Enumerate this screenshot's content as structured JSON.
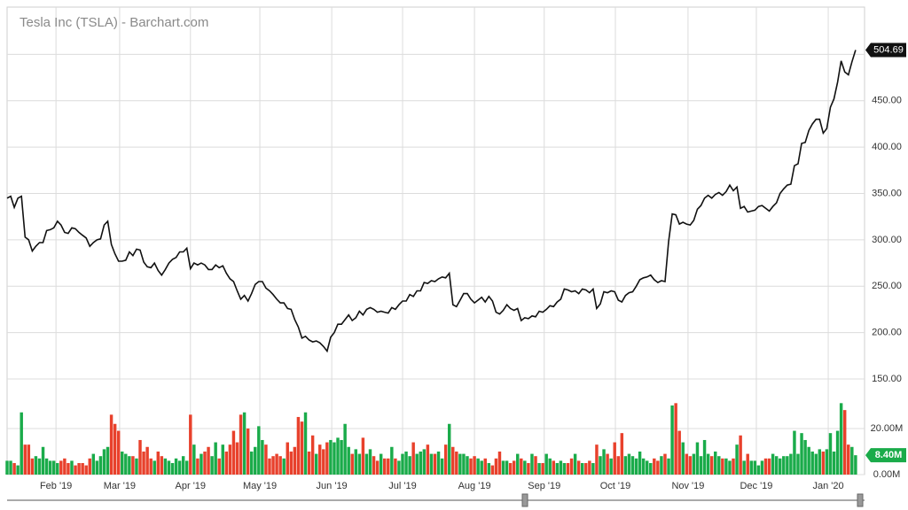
{
  "chart_data": [
    {
      "type": "line",
      "title": "Tesla Inc (TSLA) - Barchart.com",
      "color": "#111111",
      "values": [
        345,
        347,
        335,
        345,
        347,
        303,
        300,
        288,
        293,
        297,
        297,
        310,
        311,
        313,
        320,
        316,
        308,
        307,
        313,
        312,
        308,
        305,
        302,
        293,
        297,
        300,
        301,
        316,
        320,
        295,
        285,
        277,
        277,
        278,
        287,
        283,
        290,
        289,
        276,
        271,
        270,
        275,
        267,
        262,
        268,
        275,
        279,
        281,
        287,
        287,
        291,
        269,
        275,
        273,
        275,
        273,
        268,
        268,
        273,
        270,
        272,
        264,
        258,
        255,
        245,
        236,
        240,
        234,
        242,
        252,
        255,
        255,
        248,
        245,
        241,
        236,
        232,
        232,
        226,
        225,
        214,
        206,
        194,
        196,
        192,
        190,
        191,
        189,
        185,
        180,
        195,
        200,
        209,
        209,
        214,
        219,
        213,
        216,
        223,
        219,
        225,
        227,
        225,
        222,
        223,
        222,
        221,
        227,
        225,
        230,
        234,
        234,
        241,
        239,
        245,
        245,
        254,
        253,
        256,
        255,
        258,
        260,
        259,
        264,
        230,
        228,
        235,
        242,
        242,
        236,
        232,
        235,
        238,
        233,
        239,
        234,
        222,
        220,
        224,
        230,
        226,
        224,
        226,
        213,
        216,
        215,
        218,
        217,
        223,
        222,
        225,
        229,
        228,
        233,
        236,
        247,
        246,
        244,
        245,
        242,
        247,
        246,
        243,
        247,
        226,
        231,
        244,
        243,
        245,
        244,
        235,
        233,
        240,
        243,
        244,
        250,
        257,
        259,
        260,
        262,
        257,
        254,
        256,
        255,
        298,
        328,
        327,
        317,
        319,
        317,
        316,
        321,
        333,
        337,
        345,
        348,
        345,
        349,
        351,
        348,
        352,
        359,
        353,
        357,
        334,
        336,
        330,
        331,
        332,
        336,
        337,
        334,
        331,
        336,
        340,
        350,
        355,
        359,
        360,
        380,
        382,
        404,
        405,
        418,
        425,
        430,
        430,
        415,
        420,
        443,
        452,
        470,
        493,
        481,
        478,
        492,
        504.69
      ],
      "ylim": [
        150,
        551
      ],
      "yticks": [
        {
          "value": 150,
          "label": "150.00"
        },
        {
          "value": 200,
          "label": "200.00"
        },
        {
          "value": 250,
          "label": "250.00"
        },
        {
          "value": 300,
          "label": "300.00"
        },
        {
          "value": 350,
          "label": "350.00"
        },
        {
          "value": 400,
          "label": "400.00"
        },
        {
          "value": 450,
          "label": "450.00"
        },
        {
          "value": 500,
          "label": "500.00"
        }
      ],
      "xlim": [
        0,
        238.5
      ],
      "grid": true
    },
    {
      "type": "bar",
      "colors": {
        "up": "#1aab4a",
        "down": "#e8412c",
        "label": "#1aab4a"
      },
      "values": [
        6,
        6,
        5,
        4,
        27,
        13,
        13,
        7,
        8,
        7,
        12,
        7,
        6,
        6,
        5,
        6,
        7,
        5,
        6,
        4,
        5,
        5,
        4,
        7,
        9,
        6,
        8,
        11,
        12,
        26,
        22,
        19,
        10,
        9,
        8,
        8,
        7,
        15,
        10,
        12,
        7,
        6,
        10,
        8,
        7,
        6,
        5,
        7,
        6,
        8,
        6,
        26,
        13,
        7,
        9,
        10,
        12,
        8,
        14,
        7,
        13,
        10,
        13,
        19,
        14,
        26,
        27,
        20,
        10,
        12,
        21,
        15,
        13,
        7,
        8,
        9,
        8,
        7,
        14,
        10,
        12,
        25,
        23,
        27,
        10,
        17,
        9,
        13,
        11,
        14,
        15,
        14,
        16,
        15,
        22,
        12,
        9,
        11,
        9,
        16,
        9,
        11,
        8,
        6,
        9,
        7,
        7,
        12,
        7,
        6,
        9,
        10,
        8,
        14,
        9,
        10,
        11,
        13,
        9,
        9,
        10,
        7,
        13,
        22,
        12,
        10,
        9,
        9,
        8,
        7,
        8,
        7,
        6,
        7,
        5,
        4,
        7,
        10,
        6,
        6,
        5,
        6,
        9,
        7,
        6,
        5,
        9,
        8,
        5,
        5,
        9,
        7,
        6,
        5,
        6,
        5,
        5,
        7,
        9,
        6,
        5,
        5,
        6,
        5,
        13,
        8,
        11,
        9,
        7,
        14,
        8,
        18,
        8,
        9,
        8,
        7,
        10,
        7,
        6,
        5,
        7,
        6,
        8,
        9,
        7,
        30,
        31,
        19,
        14,
        9,
        8,
        9,
        14,
        8,
        15,
        9,
        8,
        10,
        8,
        7,
        7,
        6,
        7,
        13,
        17,
        6,
        9,
        6,
        6,
        4,
        6,
        7,
        7,
        9,
        8,
        7,
        8,
        8,
        9,
        19,
        9,
        18,
        15,
        12,
        10,
        9,
        11,
        10,
        11,
        18,
        10,
        19,
        31,
        28,
        13,
        12,
        8.4
      ],
      "value_labels": {
        "236": "8.40M"
      },
      "ylim": [
        0,
        41.5
      ],
      "yticks": [
        {
          "value": 0,
          "label": "0.00M"
        },
        {
          "value": 20,
          "label": "20.00M"
        }
      ],
      "xlim": [
        0,
        238.5
      ],
      "xticks": [
        {
          "value": 13.6,
          "label": "Feb '19"
        },
        {
          "value": 31.3,
          "label": "Mar '19"
        },
        {
          "value": 51,
          "label": "Apr '19"
        },
        {
          "value": 70.3,
          "label": "May '19"
        },
        {
          "value": 90.3,
          "label": "Jun '19"
        },
        {
          "value": 110,
          "label": "Jul '19"
        },
        {
          "value": 130,
          "label": "Aug '19"
        },
        {
          "value": 149.4,
          "label": "Sep '19"
        },
        {
          "value": 169.2,
          "label": "Oct '19"
        },
        {
          "value": 189.4,
          "label": "Nov '19"
        },
        {
          "value": 208.4,
          "label": "Dec '19"
        },
        {
          "value": 228.4,
          "label": "Jan '20"
        }
      ],
      "grid": true
    }
  ]
}
